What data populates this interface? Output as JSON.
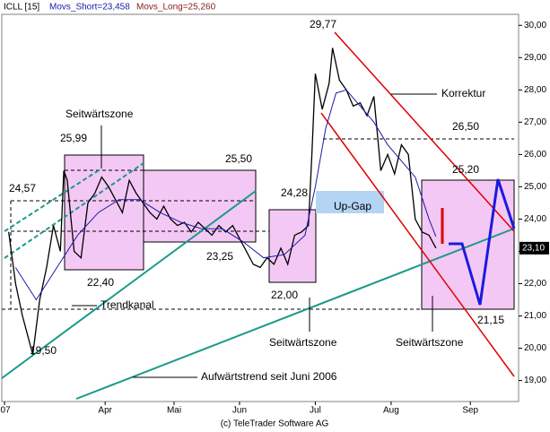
{
  "chart_data": {
    "type": "line",
    "header": {
      "symbol": "ICLL [15]",
      "short": "Movs_Short=23,458",
      "long": "Movs_Long=25,260"
    },
    "footer": "(c) TeleTrader Software AG",
    "grid": false,
    "xlim": [
      0,
      150
    ],
    "xticks": [
      {
        "value": 0.8,
        "label": "'07"
      },
      {
        "value": 30,
        "label": "Apr"
      },
      {
        "value": 50,
        "label": "Mai"
      },
      {
        "value": 69,
        "label": "Jun"
      },
      {
        "value": 91,
        "label": "Jul"
      },
      {
        "value": 113,
        "label": "Aug"
      },
      {
        "value": 136,
        "label": "Sep"
      }
    ],
    "ylim": [
      18.35,
      30.34
    ],
    "yticks": [
      {
        "value": 19,
        "label": "19,00"
      },
      {
        "value": 20,
        "label": "20,00"
      },
      {
        "value": 21,
        "label": "21,00"
      },
      {
        "value": 22,
        "label": "22,00"
      },
      {
        "value": 23,
        "label": "23,00"
      },
      {
        "value": 24,
        "label": "24,00"
      },
      {
        "value": 25,
        "label": "25,00"
      },
      {
        "value": 26,
        "label": "26,00"
      },
      {
        "value": 27,
        "label": "27,00"
      },
      {
        "value": 28,
        "label": "28,00"
      },
      {
        "value": 29,
        "label": "29,00"
      },
      {
        "value": 30,
        "label": "30,00"
      }
    ],
    "last_price": {
      "value": 23.1,
      "label": "23,10"
    },
    "series": [
      {
        "name": "ICLL",
        "color": "#000000",
        "x": [
          2,
          4,
          6,
          8,
          9,
          11,
          13,
          15,
          17,
          18,
          19,
          21,
          23,
          25,
          27,
          29,
          31,
          33,
          35,
          37,
          39,
          41,
          43,
          45,
          47,
          49,
          51,
          53,
          55,
          57,
          59,
          61,
          63,
          65,
          67,
          69,
          71,
          73,
          75,
          77,
          79,
          81,
          83,
          85,
          87,
          89,
          90,
          91,
          93,
          95,
          96,
          98,
          100,
          102,
          104,
          106,
          108,
          110,
          112,
          114,
          116,
          118,
          120,
          122,
          124,
          126
        ],
        "values": [
          23.6,
          22.0,
          21.0,
          20.2,
          19.8,
          21.5,
          22.5,
          23.8,
          23.0,
          25.5,
          25.2,
          23.0,
          22.8,
          24.5,
          24.8,
          25.3,
          25.0,
          24.6,
          24.2,
          25.2,
          24.8,
          24.5,
          24.2,
          24.0,
          24.4,
          24.0,
          23.8,
          23.9,
          23.6,
          23.9,
          23.7,
          23.5,
          23.8,
          23.6,
          23.8,
          23.4,
          23.0,
          22.6,
          22.5,
          22.8,
          22.6,
          23.1,
          22.6,
          23.5,
          23.6,
          23.8,
          26.0,
          28.5,
          27.4,
          28.2,
          29.3,
          28.3,
          28.0,
          27.5,
          27.6,
          27.2,
          27.8,
          25.5,
          26.0,
          25.4,
          26.3,
          26.0,
          24.0,
          23.6,
          23.5,
          23.1
        ]
      },
      {
        "name": "Movs_Short",
        "color": "#1a1aa8",
        "x": [
          4,
          10,
          16,
          22,
          28,
          34,
          40,
          46,
          52,
          58,
          64,
          70,
          76,
          82,
          88,
          91,
          94,
          97,
          100,
          104,
          108,
          112,
          116,
          120,
          124,
          126
        ],
        "values": [
          22.5,
          21.5,
          22.5,
          23.5,
          24.2,
          24.6,
          24.6,
          24.2,
          23.9,
          23.7,
          23.7,
          23.3,
          22.8,
          22.9,
          23.5,
          25.0,
          26.8,
          27.9,
          28.0,
          27.5,
          27.0,
          26.3,
          25.8,
          25.3,
          24.0,
          23.458
        ]
      }
    ],
    "annotations": [
      "Seitwärtszone",
      "25,99",
      "24,57",
      "22,40",
      "25,50",
      "23,25",
      "24,28",
      "22,00",
      "Up-Gap",
      "29,77",
      "Korrektur",
      "26,50",
      "25,20",
      "21,15",
      "Seitwärtszone",
      "Seitwärtszone",
      "Trendkanal",
      "19,50",
      "Aufwärtstrend seit Juni 2006"
    ]
  }
}
